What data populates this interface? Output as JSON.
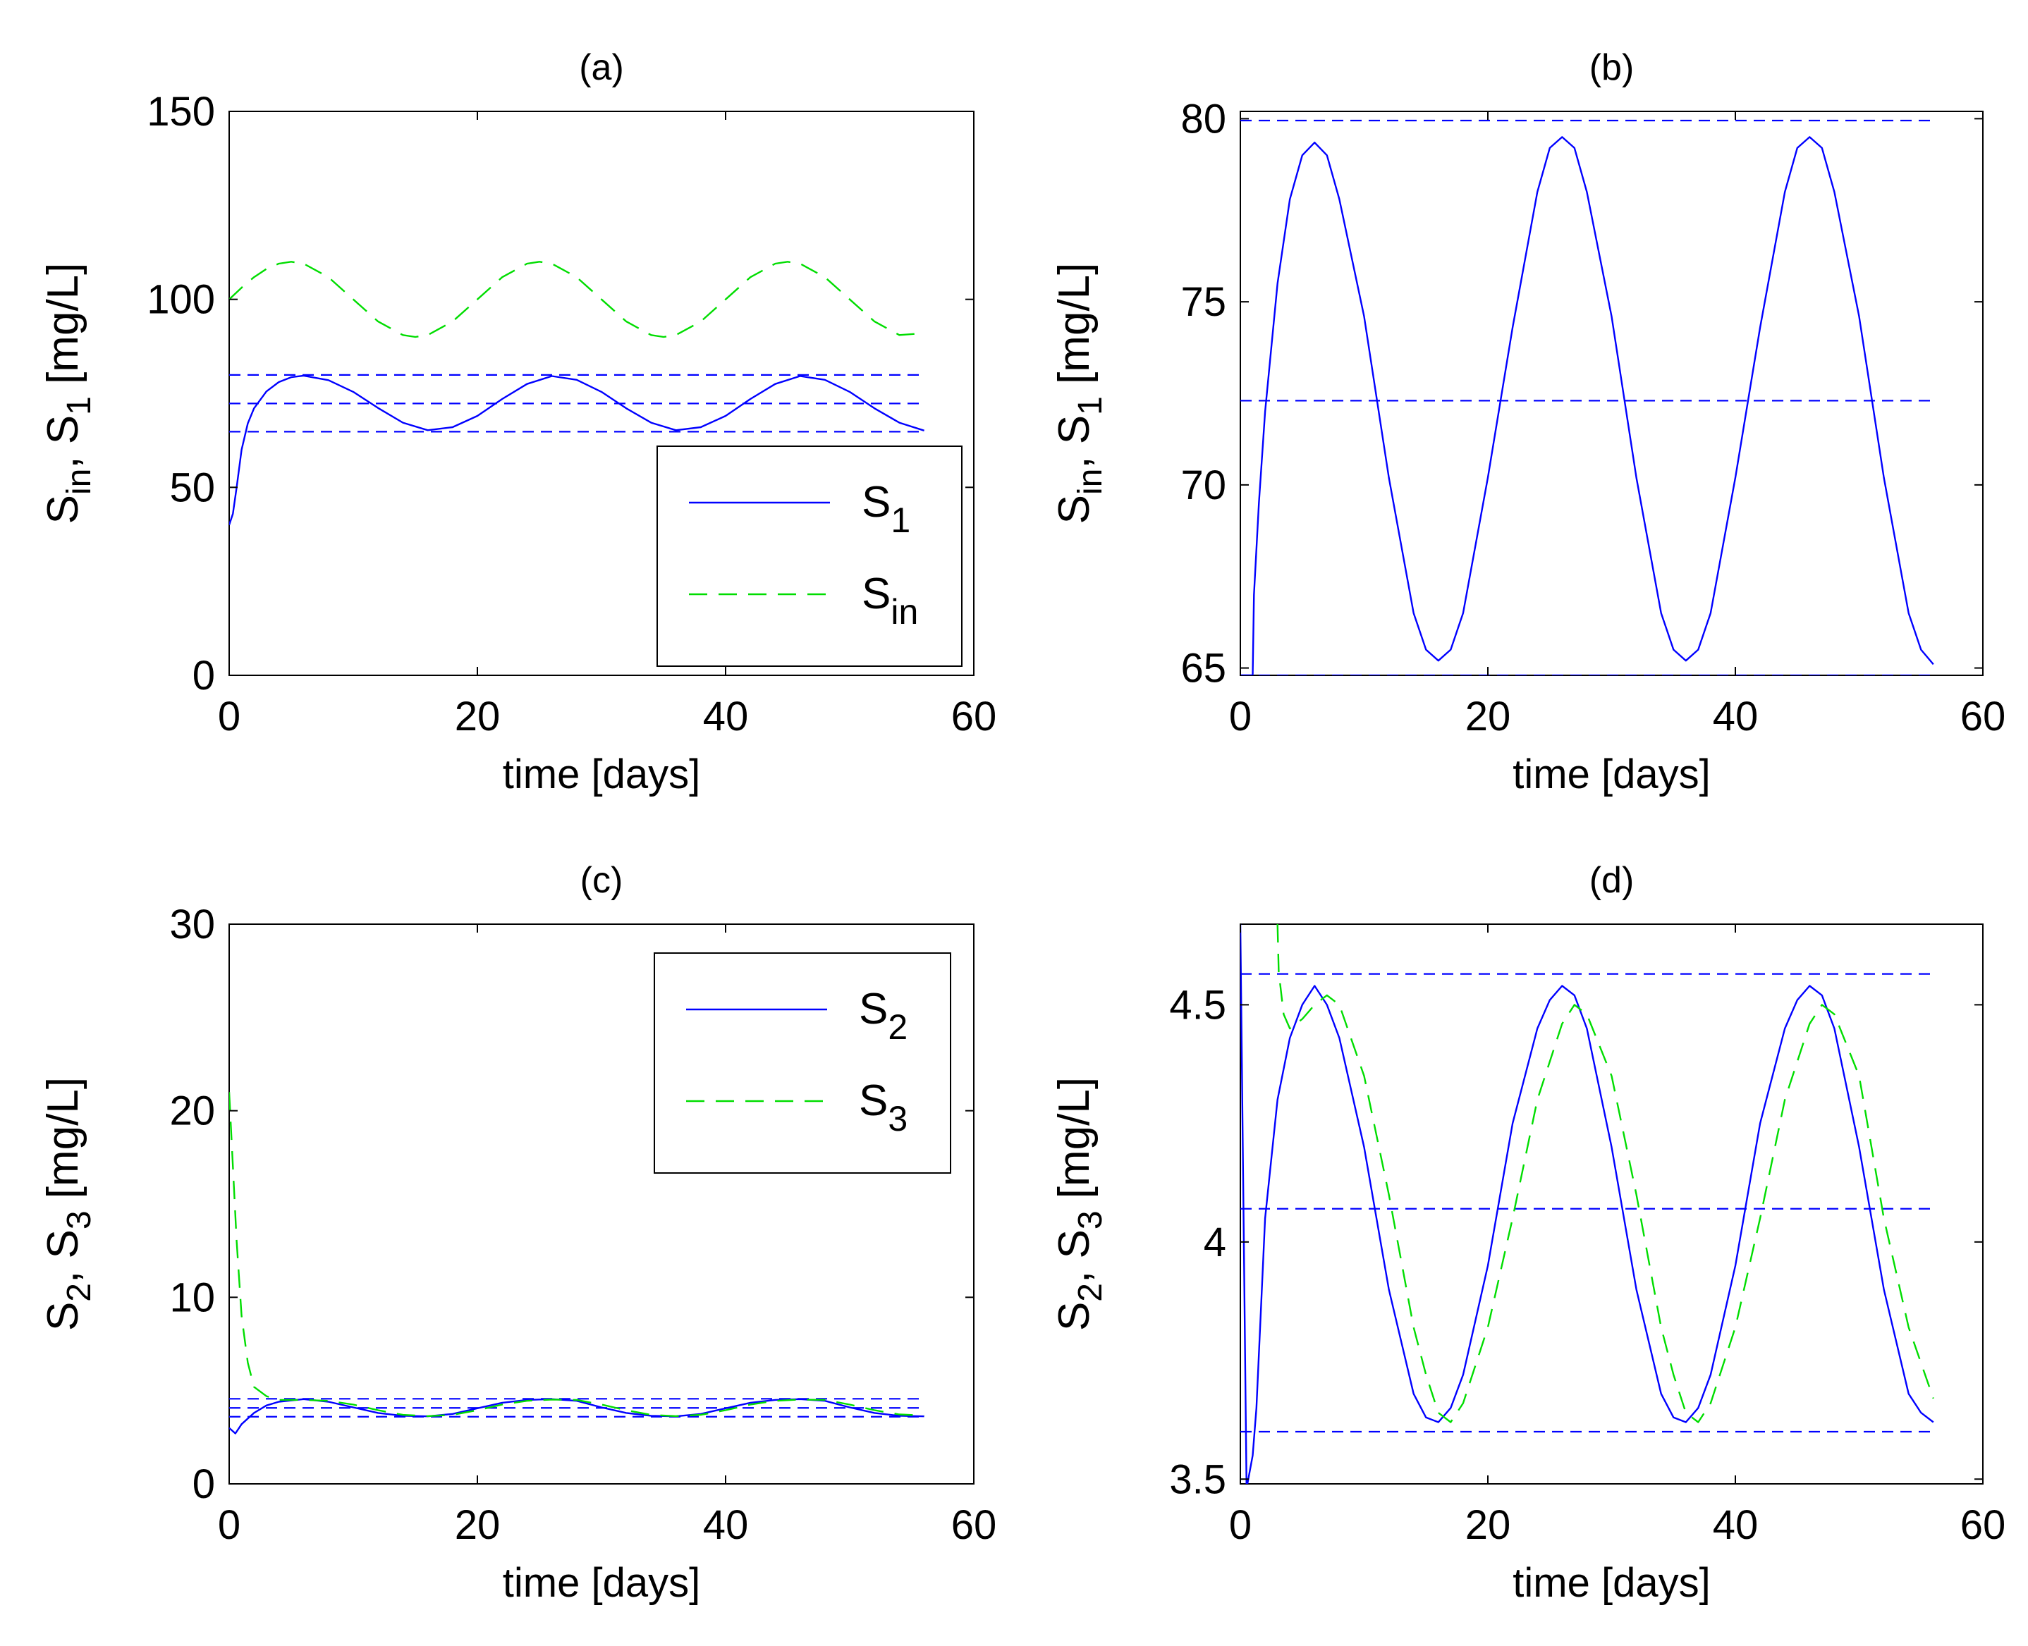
{
  "chart_data": [
    {
      "id": "a",
      "type": "line",
      "title": "(a)",
      "xlabel": "time [days]",
      "ylabel": {
        "base1": "S",
        "sub1": "in",
        "mid": ", S",
        "sub2": "1",
        "tail": " [mg/L]"
      },
      "xlim": [
        0,
        60
      ],
      "ylim": [
        0,
        150
      ],
      "xticks": [
        0,
        20,
        40,
        60
      ],
      "yticks": [
        0,
        50,
        100,
        150
      ],
      "legend": {
        "placement": "bottom-right",
        "entries": [
          {
            "label": "S",
            "sub": "1",
            "color": "#0000ff",
            "dash": "solid"
          },
          {
            "label": "S",
            "sub": "in",
            "color": "#00dd00",
            "dash": "dashed"
          }
        ]
      },
      "hlines": [
        {
          "y": 79.9,
          "color": "#0000ff"
        },
        {
          "y": 72.3,
          "color": "#0000ff"
        },
        {
          "y": 64.8,
          "color": "#0000ff"
        }
      ],
      "series": [
        {
          "name": "S1",
          "color": "#0000ff",
          "dash": "solid",
          "x": [
            0,
            0.3,
            0.6,
            1,
            1.5,
            2,
            3,
            4,
            5,
            6,
            8,
            10,
            12,
            14,
            16,
            18,
            20,
            22,
            24,
            26,
            28,
            30,
            32,
            34,
            36,
            38,
            40,
            42,
            44,
            46,
            48,
            50,
            52,
            54,
            56
          ],
          "y": [
            40,
            43,
            50,
            60,
            67,
            71,
            75.5,
            78,
            79.3,
            79.7,
            78.5,
            75.4,
            71.1,
            67.2,
            65.2,
            66,
            69,
            73.5,
            77.5,
            79.6,
            78.6,
            75.4,
            71,
            67.2,
            65.2,
            66,
            69,
            73.5,
            77.5,
            79.6,
            78.6,
            75.4,
            71,
            67.2,
            65.1
          ]
        },
        {
          "name": "Sin",
          "color": "#00dd00",
          "dash": "dashed",
          "x": [
            0,
            1,
            2,
            3,
            4,
            5,
            6,
            8,
            10,
            12,
            14,
            15,
            16,
            18,
            20,
            22,
            24,
            25,
            26,
            28,
            30,
            32,
            34,
            35,
            36,
            38,
            40,
            42,
            44,
            45,
            46,
            48,
            50,
            52,
            54,
            56
          ],
          "y": [
            100,
            103.1,
            105.9,
            108.1,
            109.5,
            110,
            109.5,
            105.9,
            100,
            94.1,
            90.5,
            90,
            90.5,
            94.1,
            100,
            105.9,
            109.5,
            110,
            109.5,
            105.9,
            100,
            94.1,
            90.5,
            90,
            90.5,
            94.1,
            100,
            105.9,
            109.5,
            110,
            109.5,
            105.9,
            100,
            94.1,
            90.5,
            91
          ]
        }
      ]
    },
    {
      "id": "b",
      "type": "line",
      "title": "(b)",
      "xlabel": "time [days]",
      "ylabel": {
        "base1": "S",
        "sub1": "in",
        "mid": ", S",
        "sub2": "1",
        "tail": " [mg/L]"
      },
      "xlim": [
        0,
        60
      ],
      "ylim": [
        64.8,
        80.2
      ],
      "xticks": [
        0,
        20,
        40,
        60
      ],
      "yticks": [
        65,
        70,
        75,
        80
      ],
      "legend": null,
      "hlines": [
        {
          "y": 79.95,
          "color": "#0000ff"
        },
        {
          "y": 72.3,
          "color": "#0000ff"
        },
        {
          "y": 64.8,
          "color": "#0000ff"
        }
      ],
      "series": [
        {
          "name": "S1",
          "color": "#0000ff",
          "dash": "solid",
          "x": [
            0,
            1,
            1.1,
            1.5,
            2,
            3,
            4,
            5,
            6,
            7,
            8,
            10,
            12,
            14,
            15,
            16,
            17,
            18,
            20,
            22,
            24,
            25,
            26,
            27,
            28,
            30,
            32,
            34,
            35,
            36,
            37,
            38,
            40,
            42,
            44,
            45,
            46,
            47,
            48,
            50,
            52,
            54,
            55,
            56
          ],
          "y": [
            64.8,
            64.8,
            67,
            69.5,
            72,
            75.5,
            77.8,
            79,
            79.35,
            79,
            77.8,
            74.6,
            70.2,
            66.5,
            65.5,
            65.2,
            65.5,
            66.5,
            70.2,
            74.3,
            78,
            79.2,
            79.5,
            79.2,
            78,
            74.6,
            70.2,
            66.5,
            65.5,
            65.2,
            65.5,
            66.5,
            70.2,
            74.3,
            78,
            79.2,
            79.5,
            79.2,
            78,
            74.6,
            70.2,
            66.5,
            65.5,
            65.1
          ]
        }
      ]
    },
    {
      "id": "c",
      "type": "line",
      "title": "(c)",
      "xlabel": "time [days]",
      "ylabel": {
        "base1": "S",
        "sub1": "2",
        "mid": ", S",
        "sub2": "3",
        "tail": " [mg/L]"
      },
      "xlim": [
        0,
        60
      ],
      "ylim": [
        0,
        30
      ],
      "xticks": [
        0,
        20,
        40,
        60
      ],
      "yticks": [
        0,
        10,
        20,
        30
      ],
      "legend": {
        "placement": "top-right",
        "entries": [
          {
            "label": "S",
            "sub": "2",
            "color": "#0000ff",
            "dash": "solid"
          },
          {
            "label": "S",
            "sub": "3",
            "color": "#00dd00",
            "dash": "dashed"
          }
        ]
      },
      "hlines": [
        {
          "y": 4.56,
          "color": "#0000ff"
        },
        {
          "y": 4.07,
          "color": "#0000ff"
        },
        {
          "y": 3.6,
          "color": "#0000ff"
        }
      ],
      "series": [
        {
          "name": "S2",
          "color": "#0000ff",
          "dash": "solid",
          "x": [
            0,
            0.5,
            1,
            2,
            3,
            4,
            6,
            8,
            10,
            12,
            14,
            16,
            18,
            20,
            22,
            24,
            26,
            28,
            30,
            32,
            34,
            36,
            38,
            40,
            42,
            44,
            46,
            48,
            50,
            52,
            54,
            56
          ],
          "y": [
            3,
            2.7,
            3.2,
            3.8,
            4.2,
            4.4,
            4.54,
            4.4,
            4.1,
            3.8,
            3.65,
            3.62,
            3.75,
            4.05,
            4.35,
            4.5,
            4.54,
            4.45,
            4.1,
            3.8,
            3.65,
            3.62,
            3.75,
            4.05,
            4.35,
            4.5,
            4.54,
            4.45,
            4.1,
            3.8,
            3.65,
            3.62
          ]
        },
        {
          "name": "S3",
          "color": "#00dd00",
          "dash": "dashed",
          "x": [
            0,
            0.3,
            0.6,
            1,
            1.5,
            2,
            3,
            4,
            6,
            8,
            10,
            12,
            14,
            16,
            18,
            20,
            22,
            24,
            26,
            28,
            30,
            32,
            34,
            36,
            38,
            40,
            42,
            44,
            46,
            48,
            50,
            52,
            54,
            56
          ],
          "y": [
            21,
            17,
            13,
            9,
            6.5,
            5.2,
            4.7,
            4.5,
            4.5,
            4.45,
            4.25,
            3.95,
            3.7,
            3.63,
            3.7,
            3.95,
            4.25,
            4.45,
            4.52,
            4.5,
            4.25,
            3.95,
            3.7,
            3.63,
            3.7,
            3.95,
            4.25,
            4.45,
            4.52,
            4.5,
            4.25,
            3.95,
            3.72,
            3.66
          ]
        }
      ]
    },
    {
      "id": "d",
      "type": "line",
      "title": "(d)",
      "xlabel": "time [days]",
      "ylabel": {
        "base1": "S",
        "sub1": "2",
        "mid": ", S",
        "sub2": "3",
        "tail": " [mg/L]"
      },
      "xlim": [
        0,
        60
      ],
      "ylim": [
        3.49,
        4.67
      ],
      "xticks": [
        0,
        20,
        40,
        60
      ],
      "yticks": [
        3.5,
        4,
        4.5
      ],
      "legend": null,
      "hlines": [
        {
          "y": 4.565,
          "color": "#0000ff"
        },
        {
          "y": 4.07,
          "color": "#0000ff"
        },
        {
          "y": 3.6,
          "color": "#0000ff"
        }
      ],
      "series": [
        {
          "name": "S2",
          "color": "#0000ff",
          "dash": "solid",
          "x": [
            0,
            0.5,
            1,
            1.3,
            2,
            3,
            4,
            5,
            6,
            7,
            8,
            10,
            12,
            14,
            15,
            16,
            17,
            18,
            20,
            22,
            24,
            25,
            26,
            27,
            28,
            30,
            32,
            34,
            35,
            36,
            37,
            38,
            40,
            42,
            44,
            45,
            46,
            47,
            48,
            50,
            52,
            54,
            55,
            56
          ],
          "y": [
            4.67,
            3.48,
            3.55,
            3.65,
            4.05,
            4.3,
            4.43,
            4.5,
            4.54,
            4.5,
            4.43,
            4.2,
            3.9,
            3.68,
            3.63,
            3.62,
            3.65,
            3.72,
            3.95,
            4.25,
            4.45,
            4.51,
            4.54,
            4.52,
            4.45,
            4.2,
            3.9,
            3.68,
            3.63,
            3.62,
            3.65,
            3.72,
            3.95,
            4.25,
            4.45,
            4.51,
            4.54,
            4.52,
            4.45,
            4.2,
            3.9,
            3.68,
            3.64,
            3.62
          ]
        },
        {
          "name": "S3",
          "color": "#00dd00",
          "dash": "dashed",
          "x": [
            3,
            3.1,
            3.5,
            4,
            5,
            6,
            7,
            8,
            10,
            12,
            14,
            15,
            16,
            17,
            18,
            20,
            22,
            24,
            26,
            27,
            28,
            30,
            32,
            34,
            35,
            36,
            37,
            38,
            40,
            42,
            44,
            46,
            47,
            48,
            50,
            52,
            54,
            56
          ],
          "y": [
            4.67,
            4.57,
            4.48,
            4.45,
            4.47,
            4.5,
            4.52,
            4.5,
            4.35,
            4.1,
            3.82,
            3.72,
            3.64,
            3.62,
            3.66,
            3.82,
            4.05,
            4.3,
            4.46,
            4.5,
            4.48,
            4.35,
            4.1,
            3.82,
            3.72,
            3.64,
            3.62,
            3.66,
            3.82,
            4.05,
            4.3,
            4.46,
            4.5,
            4.48,
            4.35,
            4.05,
            3.82,
            3.67
          ]
        }
      ]
    }
  ]
}
